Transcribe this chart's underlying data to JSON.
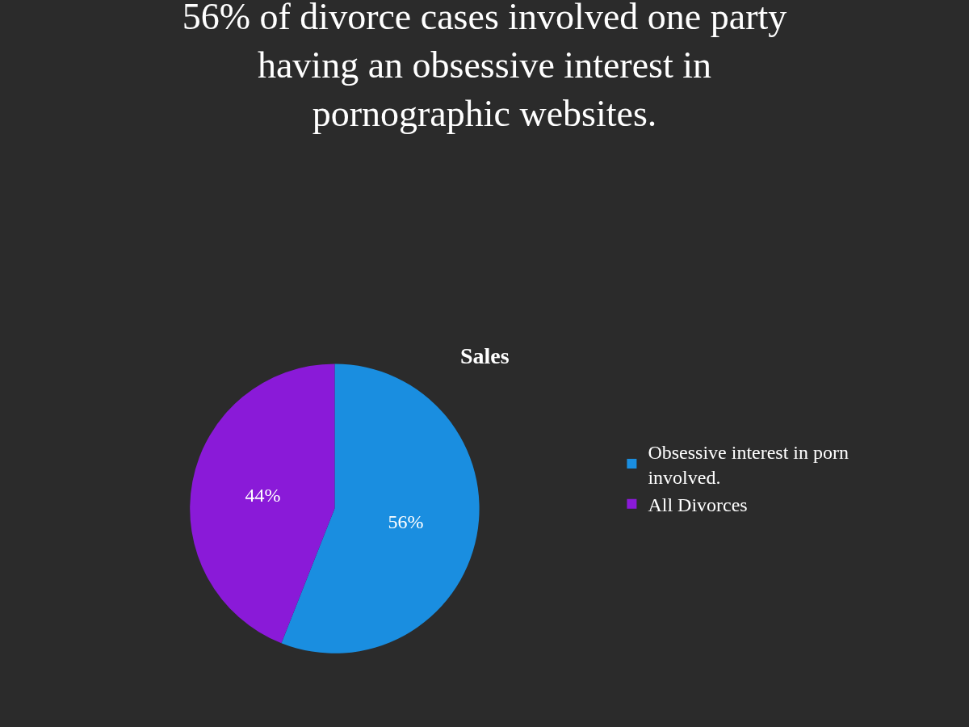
{
  "chart_data": {
    "type": "pie",
    "title": "56% of divorce cases involved one party having an obsessive interest in pornographic websites.",
    "subtitle": "Sales",
    "categories": [
      "Obsessive interest in porn involved.",
      "All Divorces"
    ],
    "values": [
      56,
      44
    ],
    "colors": [
      "#1a8ee0",
      "#8a1ad8"
    ],
    "value_labels": [
      "56%",
      "44%"
    ],
    "legend": "right"
  }
}
